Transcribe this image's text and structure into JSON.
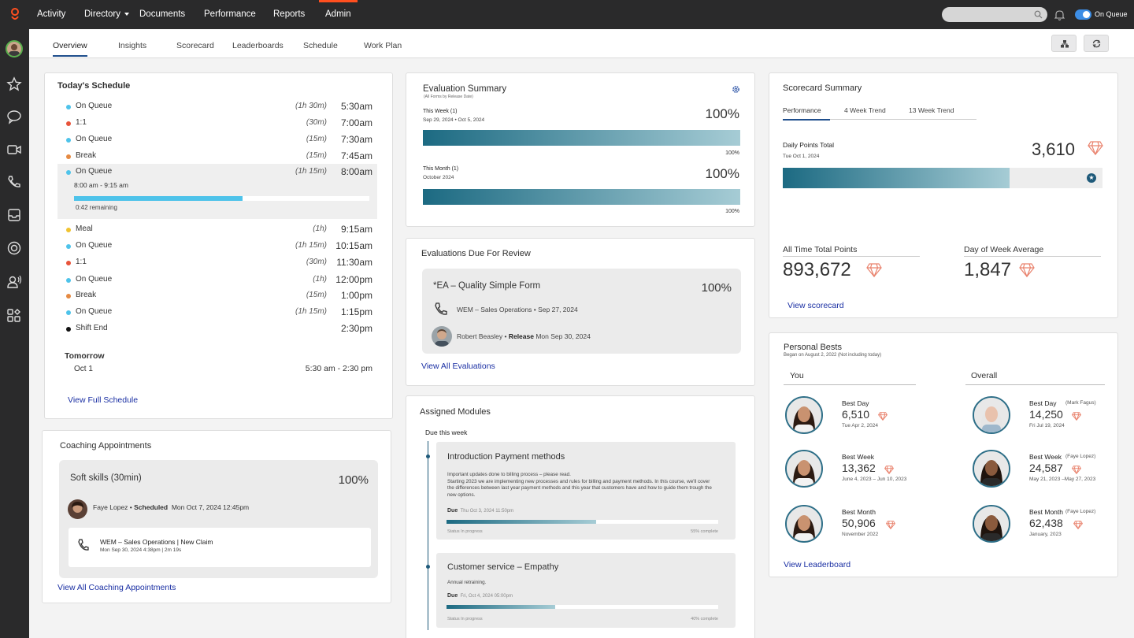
{
  "topbar": {
    "nav": [
      "Activity",
      "Directory",
      "Documents",
      "Performance",
      "Reports",
      "Admin"
    ],
    "status": "On Queue",
    "accent": "#ff4f1f"
  },
  "tabs": [
    "Overview",
    "Insights",
    "Scorecard",
    "Leaderboards",
    "Schedule",
    "Work Plan"
  ],
  "schedule": {
    "title": "Today's Schedule",
    "rows": [
      {
        "label": "On Queue",
        "dur": "(1h 30m)",
        "time": "5:30am",
        "color": "#4ec3ea"
      },
      {
        "label": "1:1",
        "dur": "(30m)",
        "time": "7:00am",
        "color": "#e8533a"
      },
      {
        "label": "On Queue",
        "dur": "(15m)",
        "time": "7:30am",
        "color": "#4ec3ea"
      },
      {
        "label": "Break",
        "dur": "(15m)",
        "time": "7:45am",
        "color": "#e58a42"
      },
      {
        "label": "On Queue",
        "dur": "(1h 15m)",
        "time": "8:00am",
        "color": "#4ec3ea"
      },
      {
        "label": "Meal",
        "dur": "(1h)",
        "time": "9:15am",
        "color": "#f0c330"
      },
      {
        "label": "On Queue",
        "dur": "(1h 15m)",
        "time": "10:15am",
        "color": "#4ec3ea"
      },
      {
        "label": "1:1",
        "dur": "(30m)",
        "time": "11:30am",
        "color": "#e8533a"
      },
      {
        "label": "On Queue",
        "dur": "(1h)",
        "time": "12:00pm",
        "color": "#4ec3ea"
      },
      {
        "label": "Break",
        "dur": "(15m)",
        "time": "1:00pm",
        "color": "#e58a42"
      },
      {
        "label": "On Queue",
        "dur": "(1h 15m)",
        "time": "1:15pm",
        "color": "#4ec3ea"
      },
      {
        "label": "Shift End",
        "dur": "",
        "time": "2:30pm",
        "color": "#111111"
      }
    ],
    "current_range": "8:00 am - 9:15 am",
    "current_remaining": "0:42 remaining",
    "current_progress": 0.57,
    "tomorrow_label": "Tomorrow",
    "tomorrow_date": "Oct 1",
    "tomorrow_range": "5:30 am - 2:30 pm",
    "link": "View Full Schedule"
  },
  "coaching": {
    "title": "Coaching Appointments",
    "item_title": "Soft skills (30min)",
    "item_pct": "100%",
    "person": "Faye Lopez",
    "status": "Scheduled",
    "date": "Mon Oct 7, 2024 12:45pm",
    "call_title": "WEM – Sales Operations | New Claim",
    "call_sub": "Mon Sep 30, 2024 4:38pm | 2m 19s",
    "link": "View All Coaching Appointments"
  },
  "evaluation": {
    "title": "Evaluation Summary",
    "subtitle": "(All Forms by Release Date)",
    "week_label": "This Week (1)",
    "week_range": "Sep 29, 2024 • Oct 5, 2024",
    "week_pct": "100%",
    "week_value": 1.0,
    "month_label": "This Month (1)",
    "month_range": "October 2024",
    "month_pct": "100%",
    "month_value": 1.0
  },
  "evals_due": {
    "title": "Evaluations Due For Review",
    "form": "*EA – Quality Simple Form",
    "pct": "100%",
    "queue": "WEM – Sales Operations • Sep 27, 2024",
    "person": "Robert Beasley",
    "release_label": "Release",
    "release_date": "Mon Sep 30, 2024",
    "link": "View All Evaluations"
  },
  "modules": {
    "title": "Assigned Modules",
    "due_label": "Due this week",
    "items": [
      {
        "title": "Introduction Payment methods",
        "desc": "Important updates done to billing process – please read.\nStarting 2023 we are implementing new processes and rules for billing and payment methods. In this course, we'll cover the differences between last year payment methods and this year that customers have and how to guide them trough the new options.",
        "due_label": "Due",
        "due": "Thu Oct 3, 2024 11:50pm",
        "status": "Status In progress",
        "complete": "55% complete",
        "progress": 0.55
      },
      {
        "title": "Customer service – Empathy",
        "desc": "Annual retraining.",
        "due_label": "Due",
        "due": "Fri, Oct 4, 2024 05:00pm",
        "status": "Status In progress",
        "complete": "40% complete",
        "progress": 0.4
      }
    ]
  },
  "scorecard": {
    "title": "Scorecard Summary",
    "tabs": [
      "Performance",
      "4 Week Trend",
      "13 Week Trend"
    ],
    "daily_label": "Daily Points Total",
    "daily_date": "Tue Oct 1, 2024",
    "daily_value": "3,610",
    "daily_progress": 0.71,
    "all_time_label": "All Time Total Points",
    "all_time_value": "893,672",
    "dow_label": "Day of Week Average",
    "dow_value": "1,847",
    "link": "View scorecard"
  },
  "bests": {
    "title": "Personal Bests",
    "subtitle": "Began on August 2, 2022 (Not including today)",
    "you_label": "You",
    "overall_label": "Overall",
    "you": [
      {
        "label": "Best Day",
        "value": "6,510",
        "date": "Tue Apr 2, 2024"
      },
      {
        "label": "Best Week",
        "value": "13,362",
        "date": "June 4, 2023 – Jun 10, 2023"
      },
      {
        "label": "Best Month",
        "value": "50,906",
        "date": "November 2022"
      }
    ],
    "overall": [
      {
        "label": "Best Day",
        "who": "(Mark Fagus)",
        "value": "14,250",
        "date": "Fri Jul 19, 2024"
      },
      {
        "label": "Best Week",
        "who": "(Faye Lopez)",
        "value": "24,587",
        "date": "May 21, 2023 –May 27, 2023"
      },
      {
        "label": "Best Month",
        "who": "(Faye Lopez)",
        "value": "62,438",
        "date": "January, 2023"
      }
    ],
    "link": "View Leaderboard"
  }
}
